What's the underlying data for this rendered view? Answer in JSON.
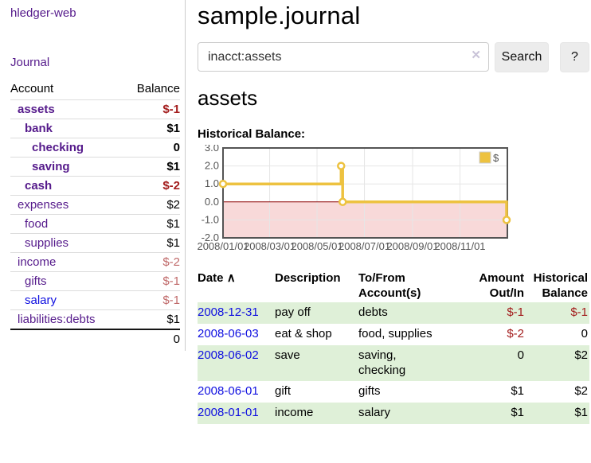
{
  "app": {
    "brand": "hledger-web",
    "nav_journal": "Journal"
  },
  "sidebar": {
    "header": {
      "account": "Account",
      "balance": "Balance"
    },
    "accounts": [
      {
        "name": "assets",
        "indent": 1,
        "bold": true,
        "link_color": "purple",
        "balance": "$-1",
        "balance_style": "neg-strong"
      },
      {
        "name": "bank",
        "indent": 2,
        "bold": true,
        "link_color": "purple",
        "balance": "$1",
        "balance_style": "bold"
      },
      {
        "name": "checking",
        "indent": 3,
        "bold": true,
        "link_color": "purple",
        "balance": "0",
        "balance_style": "bold"
      },
      {
        "name": "saving",
        "indent": 3,
        "bold": true,
        "link_color": "purple",
        "balance": "$1",
        "balance_style": "bold"
      },
      {
        "name": "cash",
        "indent": 2,
        "bold": true,
        "link_color": "purple",
        "balance": "$-2",
        "balance_style": "neg-strong"
      },
      {
        "name": "expenses",
        "indent": 1,
        "bold": false,
        "link_color": "purple",
        "balance": "$2",
        "balance_style": "plain"
      },
      {
        "name": "food",
        "indent": 2,
        "bold": false,
        "link_color": "purple",
        "balance": "$1",
        "balance_style": "plain"
      },
      {
        "name": "supplies",
        "indent": 2,
        "bold": false,
        "link_color": "purple",
        "balance": "$1",
        "balance_style": "plain"
      },
      {
        "name": "income",
        "indent": 1,
        "bold": false,
        "link_color": "purple",
        "balance": "$-2",
        "balance_style": "soft-neg"
      },
      {
        "name": "gifts",
        "indent": 2,
        "bold": false,
        "link_color": "purple",
        "balance": "$-1",
        "balance_style": "soft-neg"
      },
      {
        "name": "salary",
        "indent": 2,
        "bold": false,
        "link_color": "blue",
        "balance": "$-1",
        "balance_style": "soft-neg"
      },
      {
        "name": "liabilities:debts",
        "indent": 1,
        "bold": false,
        "link_color": "purple",
        "balance": "$1",
        "balance_style": "plain"
      }
    ],
    "total": "0"
  },
  "main": {
    "title": "sample.journal",
    "search": {
      "value": "inacct:assets",
      "clear_icon": "✕",
      "button_label": "Search",
      "help_label": "?"
    },
    "account_heading": "assets",
    "chart_label": "Historical Balance:"
  },
  "chart_data": {
    "type": "line",
    "title": "Historical Balance:",
    "step": true,
    "legend_position": "top-right",
    "grid": true,
    "ylim": [
      -2,
      3
    ],
    "y_ticks": [
      "3.0",
      "2.0",
      "1.0",
      "0.0",
      "-1.0",
      "-2.0"
    ],
    "x_ticks": [
      "2008/01/01",
      "2008/03/01",
      "2008/05/01",
      "2008/07/01",
      "2008/09/01",
      "2008/11/01"
    ],
    "series": [
      {
        "name": "$",
        "color": "#edc240",
        "points": [
          [
            "2008-01-01",
            1
          ],
          [
            "2008-06-01",
            2
          ],
          [
            "2008-06-03",
            0
          ],
          [
            "2008-12-31",
            -1
          ]
        ]
      }
    ],
    "colors": {
      "negative_fill": "#f8d9d9",
      "zero_line": "#8b0000",
      "gridline": "#e6e6e6",
      "border": "#545454"
    }
  },
  "table": {
    "headers": {
      "date": "Date",
      "sort_arrow": "∧",
      "description": "Description",
      "tofrom1": "To/From",
      "tofrom2": "Account(s)",
      "amount1": "Amount",
      "amount2": "Out/In",
      "hist1": "Historical",
      "hist2": "Balance"
    },
    "rows": [
      {
        "date": "2008-12-31",
        "description": "pay off",
        "accounts": "debts",
        "amount": "$-1",
        "amount_negative": true,
        "balance": "$-1",
        "balance_negative": true
      },
      {
        "date": "2008-06-03",
        "description": "eat & shop",
        "accounts": "food, supplies",
        "amount": "$-2",
        "amount_negative": true,
        "balance": "0",
        "balance_negative": false
      },
      {
        "date": "2008-06-02",
        "description": "save",
        "accounts": "saving,\nchecking",
        "amount": "0",
        "amount_negative": false,
        "balance": "$2",
        "balance_negative": false
      },
      {
        "date": "2008-06-01",
        "description": "gift",
        "accounts": "gifts",
        "amount": "$1",
        "amount_negative": false,
        "balance": "$2",
        "balance_negative": false
      },
      {
        "date": "2008-01-01",
        "description": "income",
        "accounts": "salary",
        "amount": "$1",
        "amount_negative": false,
        "balance": "$1",
        "balance_negative": false
      }
    ]
  },
  "colors": {
    "accent_purple": "#551A8B",
    "link_blue": "#0f0fe0",
    "negative_strong": "#a31d1d",
    "negative_soft": "#c06a6a",
    "row_green": "#dff0d8"
  }
}
